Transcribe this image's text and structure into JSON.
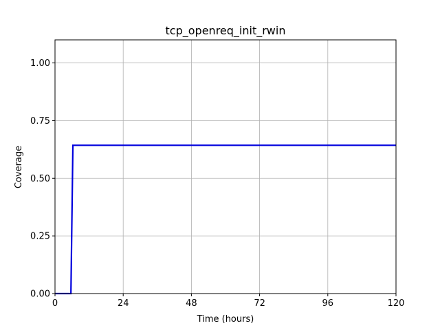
{
  "chart_data": {
    "type": "line",
    "title": "tcp_openreq_init_rwin",
    "xlabel": "Time (hours)",
    "ylabel": "Coverage",
    "xlim": [
      0,
      120
    ],
    "ylim": [
      0,
      1.1
    ],
    "x_ticks": [
      0,
      24,
      48,
      72,
      96,
      120
    ],
    "x_tick_labels": [
      "0",
      "24",
      "48",
      "72",
      "96",
      "120"
    ],
    "y_ticks": [
      0,
      0.25,
      0.5,
      0.75,
      1.0
    ],
    "y_tick_labels": [
      "0.00",
      "0.25",
      "0.50",
      "0.75",
      "1.00"
    ],
    "grid": true,
    "series": [
      {
        "color": "#0000dd",
        "x": [
          0,
          5.6,
          6.3,
          120
        ],
        "y": [
          0,
          0,
          0.643,
          0.643
        ]
      }
    ]
  }
}
